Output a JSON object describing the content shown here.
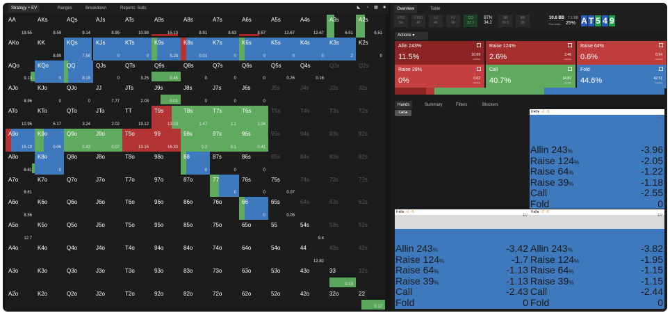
{
  "toolbar": {
    "strategy": "Strategy + EV",
    "ranges": "Ranges",
    "breakdown": "Breakdown",
    "reports": "Reports: Suits"
  },
  "right_tabs": {
    "overview": "Overview",
    "table": "Table"
  },
  "positions": [
    {
      "name": "UTG",
      "val": "50"
    },
    {
      "name": "UTG1",
      "val": "40"
    },
    {
      "name": "LJ",
      "val": "40"
    },
    {
      "name": "HJ",
      "val": "40"
    },
    {
      "name": "CO",
      "val": "37.7"
    },
    {
      "name": "BTN",
      "val": "34.2"
    },
    {
      "name": "SB",
      "val": "39.5"
    },
    {
      "name": "BB",
      "val": "36"
    }
  ],
  "pot": {
    "bb": "10.6 BB",
    "bb2": "7.1 BB",
    "odds_label": "Pot odds:",
    "odds": "25%"
  },
  "board": [
    "A",
    "T",
    "5",
    "4",
    "9"
  ],
  "actions_label": "Actions",
  "actions": [
    {
      "name": "Allin 243%",
      "pct": "11.5%",
      "ev": "10.99",
      "combos": "combos",
      "color": "#8c2424"
    },
    {
      "name": "Raise 124%",
      "pct": "2.6%",
      "ev": "2.46",
      "combos": "combos",
      "color": "#a72e2e"
    },
    {
      "name": "Raise 64%",
      "pct": "0.6%",
      "ev": "0.54",
      "combos": "combos",
      "color": "#c03d3d"
    },
    {
      "name": "Raise 39%",
      "pct": "0%",
      "ev": "0.02",
      "combos": "combos",
      "color": "#c44040"
    },
    {
      "name": "Call",
      "pct": "40.7%",
      "ev": "34.82",
      "combos": "combos",
      "color": "#5faa5f"
    },
    {
      "name": "Fold",
      "pct": "44.6%",
      "ev": "42.51",
      "combos": "combos",
      "color": "#3f79bd"
    }
  ],
  "sub_tabs": {
    "hands": "Hands",
    "summary": "Summary",
    "filters": "Filters",
    "blockers": "Blockers"
  },
  "hand_filter": "K♣8♣",
  "hand_panels": [
    {
      "cards": "K♥8♥",
      "ev_label": "EV",
      "rows": [
        {
          "a": "Allin 243",
          "v": "-3.96"
        },
        {
          "a": "Raise 124",
          "v": "-2.05"
        },
        {
          "a": "Raise 64",
          "v": "-1.22"
        },
        {
          "a": "Raise 39",
          "v": "-1.18"
        },
        {
          "a": "Call",
          "v": "-2.55"
        },
        {
          "a": "Fold",
          "v": "0"
        }
      ]
    },
    {
      "cards": "K♦8♦",
      "ev_label": "EV",
      "rows": [
        {
          "a": "Allin 243",
          "v": "-3.42"
        },
        {
          "a": "Raise 124",
          "v": "-1.7"
        },
        {
          "a": "Raise 64",
          "v": "-1.13"
        },
        {
          "a": "Raise 39",
          "v": "-1.13"
        },
        {
          "a": "Call",
          "v": "-2.43"
        },
        {
          "a": "Fold",
          "v": "0"
        }
      ]
    },
    {
      "cards": "K♠8♠",
      "ev_label": "EV",
      "rows": [
        {
          "a": "Allin 243",
          "v": "-3.82"
        },
        {
          "a": "Raise 124",
          "v": "-1.95"
        },
        {
          "a": "Raise 64",
          "v": "-1.15"
        },
        {
          "a": "Raise 39",
          "v": "-1.15"
        },
        {
          "a": "Call",
          "v": "-2.44"
        },
        {
          "a": "Fold",
          "v": "0"
        }
      ]
    }
  ],
  "colors": {
    "allin": "#8c2424",
    "raise": "#b33434",
    "call": "#5faa5f",
    "fold": "#3f79bd",
    "empty": "#1c1c1c"
  },
  "grid": [
    [
      "AA",
      "AKs",
      "AQs",
      "AJs",
      "ATs",
      "A9s",
      "A8s",
      "A7s",
      "A6s",
      "A5s",
      "A4s",
      "A3s",
      "A2s"
    ],
    [
      "AKo",
      "KK",
      "KQs",
      "KJs",
      "KTs",
      "K9s",
      "K8s",
      "K7s",
      "K6s",
      "K5s",
      "K4s",
      "K3s",
      "K2s"
    ],
    [
      "AQo",
      "KQo",
      "QQ",
      "QJs",
      "QTs",
      "Q9s",
      "Q8s",
      "Q7s",
      "Q6s",
      "Q5s",
      "Q4s",
      "Q3s",
      "Q2s"
    ],
    [
      "AJo",
      "KJo",
      "QJo",
      "JJ",
      "JTs",
      "J9s",
      "J8s",
      "J7s",
      "J6s",
      "J5s",
      "J4s",
      "J3s",
      "J2s"
    ],
    [
      "ATo",
      "KTo",
      "QTo",
      "JTo",
      "TT",
      "T9s",
      "T8s",
      "T7s",
      "T6s",
      "T5s",
      "T4s",
      "T3s",
      "T2s"
    ],
    [
      "A9o",
      "K9o",
      "Q9o",
      "J9o",
      "T9o",
      "99",
      "98s",
      "97s",
      "96s",
      "95s",
      "94s",
      "93s",
      "92s"
    ],
    [
      "A8o",
      "K8o",
      "Q8o",
      "J8o",
      "T8o",
      "98o",
      "88",
      "87s",
      "86s",
      "85s",
      "84s",
      "83s",
      "82s"
    ],
    [
      "A7o",
      "K7o",
      "Q7o",
      "J7o",
      "T7o",
      "97o",
      "87o",
      "77",
      "76s",
      "75s",
      "74s",
      "73s",
      "72s"
    ],
    [
      "A6o",
      "K6o",
      "Q6o",
      "J6o",
      "T6o",
      "96o",
      "86o",
      "76o",
      "66",
      "65s",
      "64s",
      "63s",
      "62s"
    ],
    [
      "A5o",
      "K5o",
      "Q5o",
      "J5o",
      "T5o",
      "95o",
      "85o",
      "75o",
      "65o",
      "55",
      "54s",
      "53s",
      "52s"
    ],
    [
      "A4o",
      "K4o",
      "Q4o",
      "J4o",
      "T4o",
      "94o",
      "84o",
      "74o",
      "64o",
      "54o",
      "44",
      "43s",
      "42s"
    ],
    [
      "A3o",
      "K3o",
      "Q3o",
      "J3o",
      "T3o",
      "93o",
      "83o",
      "73o",
      "63o",
      "53o",
      "43o",
      "33",
      "32s"
    ],
    [
      "A2o",
      "K2o",
      "Q2o",
      "J2o",
      "T2o",
      "92o",
      "82o",
      "72o",
      "62o",
      "52o",
      "42o",
      "32o",
      "22"
    ]
  ],
  "cells": {
    "0,0": {
      "ev": "19.55"
    },
    "0,1": {
      "ev": "8.59"
    },
    "0,2": {
      "ev": "9.14"
    },
    "0,3": {
      "ev": "8.95"
    },
    "0,4": {
      "ev": "10.98"
    },
    "0,5": {
      "ev": "15.13",
      "bar": 0.9
    },
    "0,6": {
      "ev": "8.91"
    },
    "0,7": {
      "ev": "8.63"
    },
    "0,8": {
      "ev": "8.57",
      "bar": 0.7
    },
    "0,9": {
      "ev": "12.67"
    },
    "0,10": {
      "ev": "12.67"
    },
    "0,11": {
      "ev": "6.51",
      "c": 0.25
    },
    "0,12": {
      "ev": "6.51",
      "c": 0.3
    },
    "1,1": {
      "ev": "8.99"
    },
    "1,2": {
      "ev": "7.56",
      "f": 0.95
    },
    "1,3": {
      "ev": "0",
      "f": 1
    },
    "1,4": {
      "ev": "0",
      "f": 1
    },
    "1,5": {
      "ev": "5.28",
      "f": 0.8,
      "c": 0.2
    },
    "1,6": {
      "ev": "0.01",
      "f": 0.8,
      "r": 0.2
    },
    "1,7": {
      "ev": "0",
      "f": 1
    },
    "1,8": {
      "ev": "0",
      "f": 0.8,
      "c": 0.2
    },
    "1,9": {
      "ev": "0",
      "f": 1
    },
    "1,10": {
      "ev": "0",
      "f": 1
    },
    "1,11": {
      "ev": "2",
      "f": 1
    },
    "1,12": {
      "ev": "0"
    },
    "2,0": {
      "ev": "9.13",
      "bar2": 0.15
    },
    "2,1": {
      "ev": "0",
      "f": 1
    },
    "2,2": {
      "ev": "8.18",
      "c": 0.15,
      "f": 0.85
    },
    "2,3": {
      "ev": "0"
    },
    "2,4": {
      "ev": "3.25"
    },
    "2,5": {
      "ev": "0.46",
      "bar2": 1
    },
    "2,6": {
      "ev": "0"
    },
    "2,7": {
      "ev": "0"
    },
    "2,8": {
      "ev": "0"
    },
    "2,9": {
      "ev": "0.26"
    },
    "2,10": {
      "ev": "0.16"
    },
    "3,0": {
      "ev": "8.96"
    },
    "3,1": {
      "ev": "0"
    },
    "3,2": {
      "ev": "0"
    },
    "3,3": {
      "ev": "7.77"
    },
    "3,4": {
      "ev": "2.03"
    },
    "3,5": {
      "ev": "0.01",
      "bar2": 0.7
    },
    "3,6": {
      "ev": "0"
    },
    "3,7": {
      "ev": "0"
    },
    "3,8": {
      "ev": "0"
    },
    "4,0": {
      "ev": "10.95"
    },
    "4,1": {
      "ev": "5.17"
    },
    "4,2": {
      "ev": "3.24"
    },
    "4,3": {
      "ev": "2.02"
    },
    "4,4": {
      "ev": "19.12"
    },
    "4,5": {
      "ev": "13.03",
      "r": 0.7,
      "c": 0.3
    },
    "4,6": {
      "ev": "1.47",
      "c": 1
    },
    "4,7": {
      "ev": "1.1",
      "c": 1
    },
    "4,8": {
      "ev": "1.04",
      "c": 1
    },
    "5,0": {
      "ev": "15.19",
      "f": 0.8,
      "r": 0.2
    },
    "5,1": {
      "ev": "0.06",
      "c": 0.3,
      "f": 0.7
    },
    "5,2": {
      "ev": "0.43",
      "c": 1
    },
    "5,3": {
      "ev": "0.07",
      "c": 1
    },
    "5,4": {
      "ev": "13.15",
      "r": 1
    },
    "5,5": {
      "ev": "16.33",
      "r": 1
    },
    "5,6": {
      "ev": "0.3",
      "c": 1
    },
    "5,7": {
      "ev": "0.1",
      "c": 1
    },
    "5,8": {
      "ev": "0.41",
      "c": 1
    },
    "6,0": {
      "ev": "8.61",
      "bar2": 0.1
    },
    "6,1": {
      "ev": "0",
      "f": 1
    },
    "6,6": {
      "ev": "0",
      "c": 0.2,
      "f": 0.8
    },
    "6,7": {
      "ev": "0"
    },
    "6,8": {
      "ev": "0"
    },
    "7,0": {
      "ev": "8.61"
    },
    "7,7": {
      "ev": "0",
      "c": 0.3,
      "f": 0.7
    },
    "7,8": {
      "ev": "0"
    },
    "7,9": {
      "ev": "0.07"
    },
    "8,0": {
      "ev": "8.56"
    },
    "8,8": {
      "ev": "0",
      "c": 0.2,
      "f": 0.8
    },
    "8,9": {
      "ev": "0.05"
    },
    "9,0": {
      "ev": "12.7"
    },
    "9,10": {
      "ev": "9.4"
    },
    "10,10": {
      "ev": "12.82"
    },
    "11,11": {
      "ev": "0.13",
      "bar2": 0.9
    },
    "12,12": {
      "ev": "0.12",
      "bar2": 0.8
    }
  },
  "dim_from": {
    "0": 13,
    "1": 13,
    "2": 11,
    "3": 9,
    "4": 9,
    "5": 9,
    "6": 9,
    "7": 10,
    "8": 10,
    "9": 11,
    "10": 11,
    "11": 12,
    "12": 13
  }
}
